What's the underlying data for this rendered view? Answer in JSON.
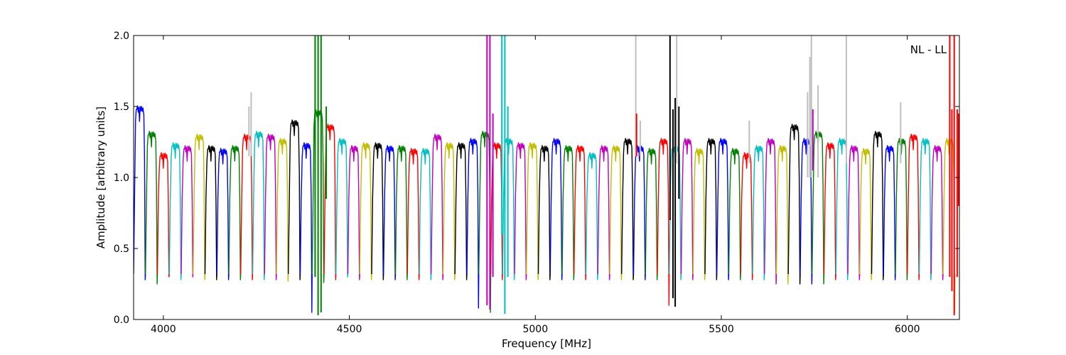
{
  "chart_data": {
    "type": "line",
    "title": "",
    "xlabel": "Frequency [MHz]",
    "ylabel": "Amplitude [arbitrary units]",
    "xlim": [
      3920,
      6140
    ],
    "ylim": [
      0.0,
      2.0
    ],
    "x_ticks": [
      4000,
      4500,
      5000,
      5500,
      6000
    ],
    "x_tick_labels": [
      "4000",
      "4500",
      "5000",
      "5500",
      "6000"
    ],
    "y_ticks": [
      0.0,
      0.5,
      1.0,
      1.5,
      2.0
    ],
    "y_tick_labels": [
      "0.0",
      "0.5",
      "1.0",
      "1.5",
      "2.0"
    ],
    "grid": false,
    "annotation": "NL - LL",
    "annotation_position": "top-right",
    "band_start_mhz": 3920,
    "band_width_mhz": 32,
    "band_count": 69,
    "band_top_values": [
      1.48,
      1.3,
      1.15,
      1.22,
      1.2,
      1.28,
      1.2,
      1.18,
      1.2,
      1.28,
      1.3,
      1.28,
      1.25,
      1.38,
      1.22,
      1.45,
      1.35,
      1.25,
      1.2,
      1.22,
      1.22,
      1.2,
      1.2,
      1.18,
      1.18,
      1.28,
      1.22,
      1.22,
      1.25,
      1.3,
      1.22,
      1.25,
      1.22,
      1.22,
      1.2,
      1.25,
      1.2,
      1.2,
      1.15,
      1.2,
      1.2,
      1.25,
      1.2,
      1.18,
      1.25,
      1.2,
      1.25,
      1.18,
      1.25,
      1.25,
      1.18,
      1.15,
      1.2,
      1.25,
      1.2,
      1.35,
      1.25,
      1.3,
      1.22,
      1.25,
      1.2,
      1.18,
      1.3,
      1.2,
      1.25,
      1.28,
      1.25,
      1.2,
      1.25
    ],
    "band_min_values": [
      0.28,
      0.25,
      0.3,
      0.28,
      0.3,
      0.28,
      0.28,
      0.28,
      0.28,
      0.28,
      0.28,
      0.28,
      0.27,
      0.28,
      0.05,
      0.26,
      0.28,
      0.3,
      0.28,
      0.28,
      0.28,
      0.28,
      0.28,
      0.28,
      0.28,
      0.28,
      0.28,
      0.28,
      0.08,
      0.05,
      0.28,
      0.28,
      0.28,
      0.28,
      0.28,
      0.28,
      0.28,
      0.28,
      0.28,
      0.28,
      0.28,
      0.28,
      0.28,
      0.28,
      0.1,
      0.28,
      0.28,
      0.28,
      0.28,
      0.28,
      0.28,
      0.28,
      0.28,
      0.25,
      0.25,
      0.25,
      0.25,
      0.25,
      0.28,
      0.28,
      0.28,
      0.28,
      0.28,
      0.28,
      0.28,
      0.28,
      0.28,
      0.28,
      0.05
    ],
    "series": [
      {
        "color": "#0000ff",
        "start_index": 0
      },
      {
        "color": "#008000",
        "start_index": 1
      },
      {
        "color": "#ff0000",
        "start_index": 2
      },
      {
        "color": "#00bfbf",
        "start_index": 3
      },
      {
        "color": "#bf00bf",
        "start_index": 4
      },
      {
        "color": "#bfbf00",
        "start_index": 5
      },
      {
        "color": "#000000",
        "start_index": 6
      }
    ],
    "masked_series_color": "#bfbfbf",
    "rfi_spikes": [
      {
        "x": 4230,
        "y_top": 1.5,
        "y_bottom": 1.15,
        "color": "#bfbfbf"
      },
      {
        "x": 4236,
        "y_top": 1.6,
        "y_bottom": 1.15,
        "color": "#bfbfbf"
      },
      {
        "x": 4408,
        "y_top": 2.0,
        "y_bottom": 0.3,
        "color": "#008000"
      },
      {
        "x": 4416,
        "y_top": 2.0,
        "y_bottom": 0.03,
        "color": "#008000"
      },
      {
        "x": 4424,
        "y_top": 2.0,
        "y_bottom": 0.05,
        "color": "#008000"
      },
      {
        "x": 4438,
        "y_top": 1.5,
        "y_bottom": 0.85,
        "color": "#008000"
      },
      {
        "x": 4870,
        "y_top": 2.0,
        "y_bottom": 0.1,
        "color": "#bf00bf"
      },
      {
        "x": 4878,
        "y_top": 2.0,
        "y_bottom": 0.07,
        "color": "#bf00bf"
      },
      {
        "x": 4886,
        "y_top": 1.45,
        "y_bottom": 0.3,
        "color": "#bf00bf"
      },
      {
        "x": 4910,
        "y_top": 2.0,
        "y_bottom": 0.6,
        "color": "#00bfbf"
      },
      {
        "x": 4918,
        "y_top": 2.0,
        "y_bottom": 0.04,
        "color": "#00bfbf"
      },
      {
        "x": 4926,
        "y_top": 1.5,
        "y_bottom": 0.3,
        "color": "#00bfbf"
      },
      {
        "x": 5270,
        "y_top": 2.0,
        "y_bottom": 1.15,
        "color": "#bfbfbf"
      },
      {
        "x": 5272,
        "y_top": 1.45,
        "y_bottom": 1.15,
        "color": "#ff0000"
      },
      {
        "x": 5282,
        "y_top": 1.4,
        "y_bottom": 1.15,
        "color": "#bfbfbf"
      },
      {
        "x": 5362,
        "y_top": 2.0,
        "y_bottom": 0.7,
        "color": "#000000"
      },
      {
        "x": 5370,
        "y_top": 1.48,
        "y_bottom": 0.15,
        "color": "#000000"
      },
      {
        "x": 5376,
        "y_top": 1.56,
        "y_bottom": 0.09,
        "color": "#000000"
      },
      {
        "x": 5380,
        "y_top": 2.0,
        "y_bottom": 1.1,
        "color": "#bfbfbf"
      },
      {
        "x": 5386,
        "y_top": 1.5,
        "y_bottom": 0.85,
        "color": "#000000"
      },
      {
        "x": 5575,
        "y_top": 1.4,
        "y_bottom": 1.1,
        "color": "#bfbfbf"
      },
      {
        "x": 5732,
        "y_top": 1.6,
        "y_bottom": 1.0,
        "color": "#bfbfbf"
      },
      {
        "x": 5738,
        "y_top": 1.85,
        "y_bottom": 1.0,
        "color": "#bfbfbf"
      },
      {
        "x": 5742,
        "y_top": 2.0,
        "y_bottom": 1.0,
        "color": "#bfbfbf"
      },
      {
        "x": 5746,
        "y_top": 1.48,
        "y_bottom": 1.05,
        "color": "#bf00bf"
      },
      {
        "x": 5760,
        "y_top": 1.65,
        "y_bottom": 1.0,
        "color": "#bfbfbf"
      },
      {
        "x": 5836,
        "y_top": 2.0,
        "y_bottom": 1.1,
        "color": "#bfbfbf"
      },
      {
        "x": 5982,
        "y_top": 1.53,
        "y_bottom": 1.1,
        "color": "#bfbfbf"
      },
      {
        "x": 6114,
        "y_top": 2.0,
        "y_bottom": 0.3,
        "color": "#ff0000"
      },
      {
        "x": 6120,
        "y_top": 1.48,
        "y_bottom": 0.2,
        "color": "#ff0000"
      },
      {
        "x": 6126,
        "y_top": 2.0,
        "y_bottom": 0.03,
        "color": "#ff0000"
      },
      {
        "x": 6134,
        "y_top": 1.48,
        "y_bottom": 0.3,
        "color": "#ff0000"
      },
      {
        "x": 6138,
        "y_top": 1.45,
        "y_bottom": 0.8,
        "color": "#ff0000"
      }
    ]
  }
}
